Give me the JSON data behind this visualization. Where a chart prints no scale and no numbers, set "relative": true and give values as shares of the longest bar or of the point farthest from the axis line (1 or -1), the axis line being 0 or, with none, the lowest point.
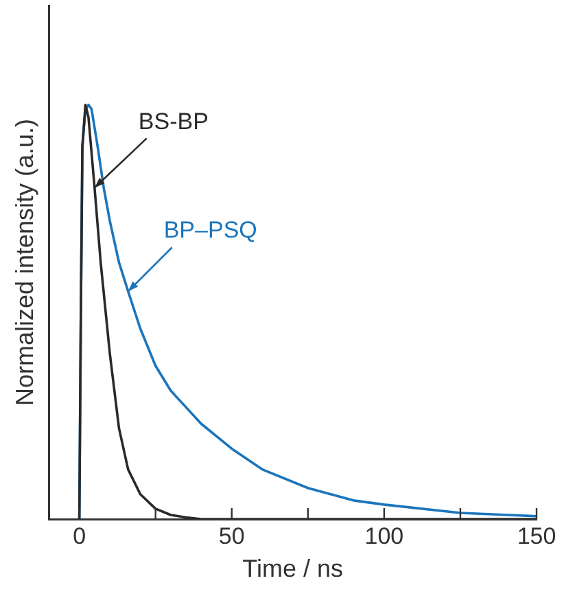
{
  "chart_data": {
    "type": "line",
    "relative": true,
    "xlabel": "Time / ns",
    "ylabel": "Normalized intensity (a.u.)",
    "xlim": [
      -10,
      150
    ],
    "xticks": [
      0,
      {
        "value": 25,
        "label": null
      },
      50,
      {
        "value": 75,
        "label": null
      },
      100,
      {
        "value": 125,
        "label": null
      },
      150
    ],
    "grid": false,
    "legend": false,
    "marker": "none",
    "line_style": "solid",
    "tick_labels": "x",
    "series": [
      {
        "name": "BS-BP",
        "color": "#2a2a2a",
        "x": [
          0,
          0.5,
          1,
          2,
          3,
          5,
          7,
          10,
          13,
          16,
          20,
          25,
          30,
          35,
          40,
          50,
          100,
          150
        ],
        "values": [
          0,
          0.5,
          0.9,
          1,
          0.97,
          0.8,
          0.62,
          0.4,
          0.22,
          0.12,
          0.06,
          0.025,
          0.01,
          0.004,
          0,
          0,
          0,
          0
        ]
      },
      {
        "name": "BP–PSQ",
        "color": "#1b75bc",
        "x": [
          0,
          0.5,
          1,
          2,
          3,
          4,
          6,
          8,
          10,
          13,
          16,
          20,
          25,
          30,
          35,
          40,
          50,
          60,
          75,
          90,
          100,
          125,
          150
        ],
        "values": [
          0,
          0.5,
          0.9,
          0.99,
          1,
          0.99,
          0.9,
          0.8,
          0.72,
          0.62,
          0.55,
          0.46,
          0.37,
          0.31,
          0.27,
          0.23,
          0.17,
          0.12,
          0.075,
          0.045,
          0.035,
          0.015,
          0.007
        ]
      }
    ]
  }
}
